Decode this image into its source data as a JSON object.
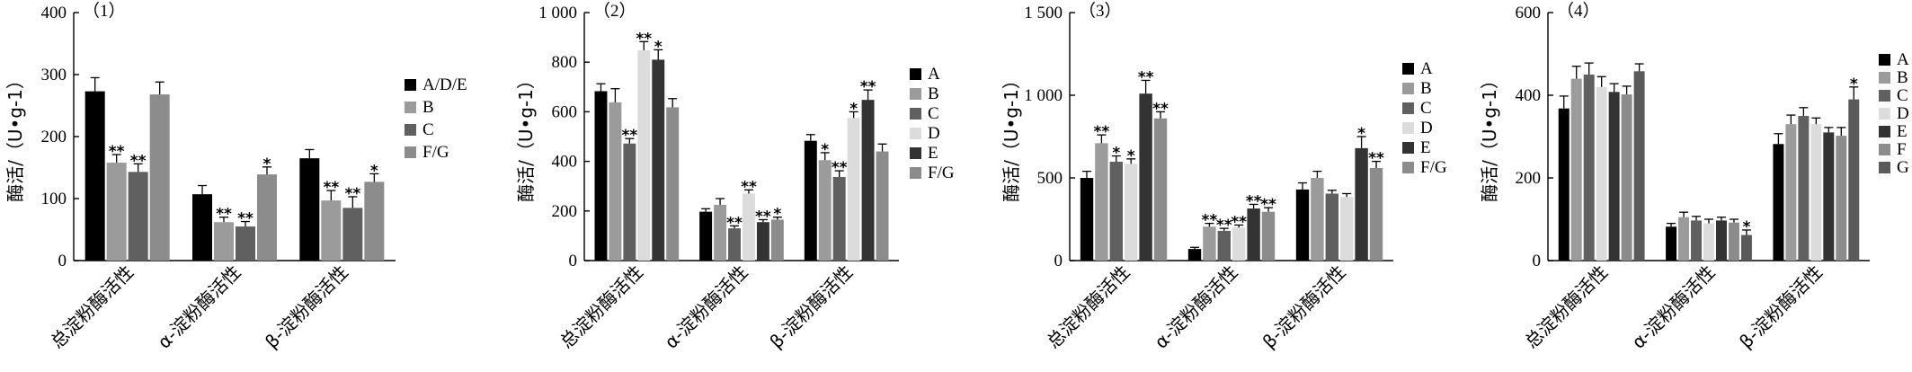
{
  "chart_data": [
    {
      "type": "bar",
      "title": "（1）",
      "ylabel": "酶活/（U•g-1）",
      "ylim": [
        0,
        400
      ],
      "yticks": [
        0,
        100,
        200,
        300,
        400
      ],
      "ytick_labels": [
        "0",
        "100",
        "200",
        "300",
        "400"
      ],
      "categories": [
        "总淀粉酶活性",
        "α-淀粉酶活性",
        "β-淀粉酶活性"
      ],
      "legend_position": "right",
      "series": [
        {
          "name": "A/D/E",
          "color": "#000000",
          "values": [
            273,
            107,
            165
          ],
          "errors": [
            22,
            14,
            14
          ],
          "sig": [
            "",
            "",
            ""
          ]
        },
        {
          "name": "B",
          "color": "#9b9b9b",
          "values": [
            158,
            62,
            97
          ],
          "errors": [
            13,
            8,
            16
          ],
          "sig": [
            "**",
            "**",
            "**"
          ]
        },
        {
          "name": "C",
          "color": "#606060",
          "values": [
            143,
            55,
            85
          ],
          "errors": [
            13,
            8,
            18
          ],
          "sig": [
            "**",
            "**",
            "**"
          ]
        },
        {
          "name": "F/G",
          "color": "#8c8c8c",
          "values": [
            268,
            139,
            127
          ],
          "errors": [
            20,
            12,
            13
          ],
          "sig": [
            "",
            "*",
            "*"
          ]
        }
      ]
    },
    {
      "type": "bar",
      "title": "（2）",
      "ylabel": "酶活/（U•g-1）",
      "ylim": [
        0,
        1000
      ],
      "yticks": [
        0,
        200,
        400,
        600,
        800,
        1000
      ],
      "ytick_labels": [
        "0",
        "200",
        "400",
        "600",
        "800",
        "1 000"
      ],
      "categories": [
        "总淀粉酶活性",
        "α-淀粉酶活性",
        "β-淀粉酶活性"
      ],
      "legend_position": "right",
      "series": [
        {
          "name": "A",
          "color": "#000000",
          "values": [
            683,
            197,
            483
          ],
          "errors": [
            30,
            12,
            25
          ],
          "sig": [
            "",
            "",
            ""
          ]
        },
        {
          "name": "B",
          "color": "#9b9b9b",
          "values": [
            638,
            225,
            405
          ],
          "errors": [
            55,
            25,
            30
          ],
          "sig": [
            "",
            "",
            "*"
          ]
        },
        {
          "name": "C",
          "color": "#606060",
          "values": [
            472,
            130,
            337
          ],
          "errors": [
            20,
            10,
            25
          ],
          "sig": [
            "**",
            "**",
            "**"
          ]
        },
        {
          "name": "D",
          "color": "#dcdcdc",
          "values": [
            848,
            270,
            575
          ],
          "errors": [
            35,
            15,
            25
          ],
          "sig": [
            "**",
            "**",
            "*"
          ]
        },
        {
          "name": "E",
          "color": "#333333",
          "values": [
            810,
            155,
            648
          ],
          "errors": [
            40,
            10,
            40
          ],
          "sig": [
            "*",
            "**",
            "**"
          ]
        },
        {
          "name": "F/G",
          "color": "#8c8c8c",
          "values": [
            618,
            165,
            440
          ],
          "errors": [
            35,
            10,
            30
          ],
          "sig": [
            "",
            "*",
            ""
          ]
        }
      ]
    },
    {
      "type": "bar",
      "title": "（3）",
      "ylabel": "酶活/（U•g-1）",
      "ylim": [
        0,
        1500
      ],
      "yticks": [
        0,
        500,
        1000,
        1500
      ],
      "ytick_labels": [
        "0",
        "500",
        "1 000",
        "1 500"
      ],
      "categories": [
        "总淀粉酶活性",
        "α-淀粉酶活性",
        "β-淀粉酶活性"
      ],
      "legend_position": "right",
      "series": [
        {
          "name": "A",
          "color": "#000000",
          "values": [
            500,
            70,
            430
          ],
          "errors": [
            40,
            10,
            40
          ],
          "sig": [
            "",
            "",
            ""
          ]
        },
        {
          "name": "B",
          "color": "#9b9b9b",
          "values": [
            710,
            205,
            500
          ],
          "errors": [
            50,
            20,
            40
          ],
          "sig": [
            "**",
            "**",
            ""
          ]
        },
        {
          "name": "C",
          "color": "#606060",
          "values": [
            598,
            180,
            405
          ],
          "errors": [
            35,
            15,
            20
          ],
          "sig": [
            "*",
            "**",
            ""
          ]
        },
        {
          "name": "D",
          "color": "#dcdcdc",
          "values": [
            585,
            200,
            385
          ],
          "errors": [
            30,
            15,
            20
          ],
          "sig": [
            "*",
            "**",
            ""
          ]
        },
        {
          "name": "E",
          "color": "#333333",
          "values": [
            1010,
            315,
            680
          ],
          "errors": [
            80,
            25,
            70
          ],
          "sig": [
            "**",
            "**",
            "*"
          ]
        },
        {
          "name": "F/G",
          "color": "#8c8c8c",
          "values": [
            860,
            295,
            560
          ],
          "errors": [
            40,
            25,
            40
          ],
          "sig": [
            "**",
            "**",
            "**"
          ]
        }
      ]
    },
    {
      "type": "bar",
      "title": "（4）",
      "ylabel": "酶活/（U•g-1）",
      "ylim": [
        0,
        600
      ],
      "yticks": [
        0,
        200,
        400,
        600
      ],
      "ytick_labels": [
        "0",
        "200",
        "400",
        "600"
      ],
      "categories": [
        "总淀粉酶活性",
        "α-淀粉酶活性",
        "β-淀粉酶活性"
      ],
      "legend_position": "right",
      "series": [
        {
          "name": "A",
          "color": "#000000",
          "values": [
            368,
            82,
            282
          ],
          "errors": [
            30,
            8,
            25
          ],
          "sig": [
            "",
            "",
            ""
          ]
        },
        {
          "name": "B",
          "color": "#9b9b9b",
          "values": [
            440,
            105,
            330
          ],
          "errors": [
            30,
            12,
            22
          ],
          "sig": [
            "",
            "",
            ""
          ]
        },
        {
          "name": "C",
          "color": "#606060",
          "values": [
            450,
            97,
            350
          ],
          "errors": [
            28,
            10,
            20
          ],
          "sig": [
            "",
            "",
            ""
          ]
        },
        {
          "name": "D",
          "color": "#dcdcdc",
          "values": [
            420,
            90,
            330
          ],
          "errors": [
            25,
            10,
            15
          ],
          "sig": [
            "",
            "",
            ""
          ]
        },
        {
          "name": "E",
          "color": "#333333",
          "values": [
            408,
            97,
            310
          ],
          "errors": [
            20,
            8,
            12
          ],
          "sig": [
            "",
            "",
            ""
          ]
        },
        {
          "name": "F",
          "color": "#8c8c8c",
          "values": [
            402,
            92,
            302
          ],
          "errors": [
            20,
            8,
            20
          ],
          "sig": [
            "",
            "",
            ""
          ]
        },
        {
          "name": "G",
          "color": "#5a5a5a",
          "values": [
            458,
            62,
            390
          ],
          "errors": [
            18,
            12,
            30
          ],
          "sig": [
            "",
            "*",
            "*"
          ]
        }
      ]
    }
  ]
}
